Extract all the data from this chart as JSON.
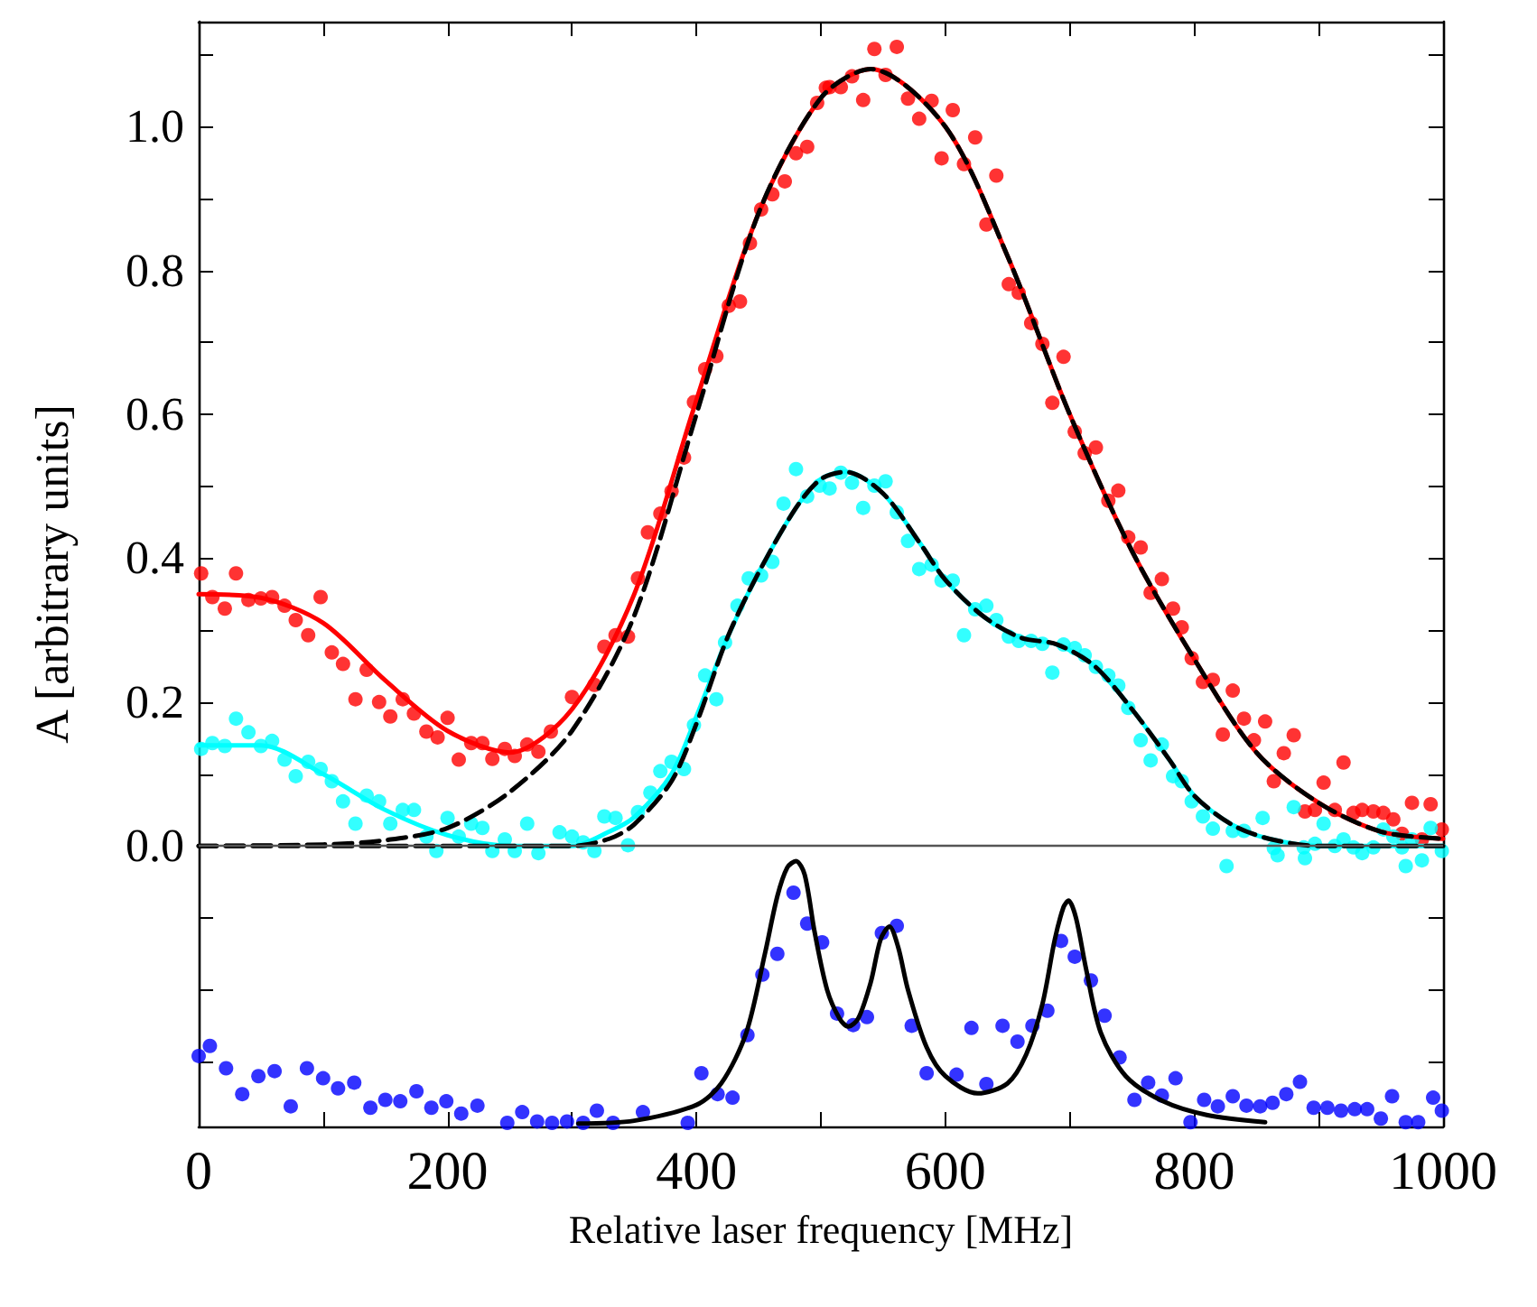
{
  "chart_data": {
    "type": "scatter",
    "xlabel": "Relative laser frequency [MHz]",
    "ylabel": "A [arbitrary units]",
    "xlim": [
      0,
      1000
    ],
    "ylim": [
      -0.39,
      1.146
    ],
    "xticks": [
      0,
      {
        "value": 100,
        "label": null
      },
      200,
      {
        "value": 300,
        "label": null
      },
      400,
      {
        "value": 500,
        "label": null
      },
      600,
      {
        "value": 700,
        "label": null
      },
      800,
      {
        "value": 900,
        "label": null
      },
      1000
    ],
    "yticks": [
      {
        "value": -0.3,
        "label": null
      },
      {
        "value": -0.2,
        "label": null
      },
      {
        "value": -0.1,
        "label": null
      },
      {
        "value": 0,
        "label": "0.0"
      },
      {
        "value": 0.1,
        "label": null
      },
      {
        "value": 0.2,
        "label": "0.2"
      },
      {
        "value": 0.3,
        "label": null
      },
      {
        "value": 0.4,
        "label": "0.4"
      },
      {
        "value": 0.5,
        "label": null
      },
      {
        "value": 0.6,
        "label": "0.6"
      },
      {
        "value": 0.7,
        "label": null
      },
      {
        "value": 0.8,
        "label": "0.8"
      },
      {
        "value": 0.9,
        "label": null
      },
      {
        "value": 1.0,
        "label": "1.0"
      },
      {
        "value": 1.1,
        "label": null
      }
    ],
    "grid": false,
    "ref_lines": [
      {
        "axis": "y",
        "value": 0,
        "color": "#555555"
      }
    ],
    "series": [
      {
        "marker": "circle",
        "color": "#ff0000",
        "x": [
          2,
          11,
          21,
          30,
          40,
          50,
          59,
          69,
          78,
          88,
          98,
          107,
          116,
          126,
          135,
          145,
          154,
          164,
          173,
          183,
          192,
          200,
          209,
          219,
          228,
          236,
          246,
          254,
          264,
          273,
          283,
          300,
          318,
          326,
          335,
          345,
          353,
          361,
          371,
          380,
          390,
          398,
          407,
          416,
          426,
          435,
          443,
          452,
          461,
          471,
          480,
          489,
          497,
          504,
          507,
          516,
          525,
          534,
          543,
          552,
          561,
          570,
          579,
          589,
          597,
          606,
          615,
          624,
          633,
          641,
          651,
          659,
          669,
          678,
          686,
          695,
          704,
          712,
          721,
          731,
          739,
          747,
          757,
          765,
          774,
          783,
          790,
          798,
          807,
          815,
          823,
          831,
          840,
          848,
          857,
          864,
          872,
          880,
          889,
          897,
          904,
          913,
          920,
          928,
          935,
          944,
          952,
          960,
          967,
          975,
          983,
          990,
          999
        ],
        "values": [
          0.379,
          0.346,
          0.33,
          0.379,
          0.342,
          0.344,
          0.346,
          0.334,
          0.314,
          0.293,
          0.346,
          0.269,
          0.253,
          0.204,
          0.245,
          0.2,
          0.18,
          0.204,
          0.184,
          0.159,
          0.151,
          0.178,
          0.12,
          0.143,
          0.143,
          0.121,
          0.135,
          0.125,
          0.141,
          0.131,
          0.159,
          0.207,
          0.224,
          0.277,
          0.293,
          0.291,
          0.372,
          0.436,
          0.462,
          0.493,
          0.54,
          0.617,
          0.663,
          0.681,
          0.751,
          0.757,
          0.838,
          0.885,
          0.906,
          0.924,
          0.963,
          0.972,
          1.033,
          1.054,
          1.055,
          1.055,
          1.07,
          1.037,
          1.108,
          1.072,
          1.111,
          1.039,
          1.011,
          1.036,
          0.956,
          1.023,
          0.948,
          0.985,
          0.864,
          0.932,
          0.781,
          0.769,
          0.727,
          0.698,
          0.616,
          0.68,
          0.576,
          0.546,
          0.554,
          0.48,
          0.494,
          0.429,
          0.415,
          0.352,
          0.371,
          0.33,
          0.304,
          0.261,
          0.228,
          0.231,
          0.155,
          0.216,
          0.177,
          0.147,
          0.173,
          0.09,
          0.129,
          0.154,
          0.048,
          0.05,
          0.088,
          0.05,
          0.116,
          0.046,
          0.05,
          0.048,
          0.046,
          0.037,
          0.017,
          0.06,
          0.009,
          0.058,
          0.023
        ]
      },
      {
        "marker": "circle",
        "color": "#00ffff",
        "x": [
          2,
          11,
          21,
          30,
          40,
          50,
          59,
          69,
          78,
          88,
          98,
          107,
          116,
          126,
          135,
          145,
          154,
          164,
          173,
          183,
          191,
          200,
          209,
          219,
          228,
          236,
          246,
          254,
          264,
          273,
          290,
          300,
          309,
          318,
          326,
          335,
          345,
          353,
          363,
          371,
          380,
          390,
          398,
          407,
          416,
          423,
          433,
          442,
          452,
          461,
          470,
          480,
          489,
          499,
          507,
          516,
          525,
          534,
          543,
          552,
          561,
          570,
          579,
          589,
          597,
          606,
          615,
          624,
          633,
          641,
          651,
          659,
          669,
          678,
          686,
          695,
          704,
          712,
          721,
          731,
          739,
          747,
          757,
          765,
          774,
          783,
          790,
          798,
          807,
          815,
          826,
          831,
          840,
          855,
          864,
          867,
          880,
          888,
          889,
          897,
          904,
          913,
          920,
          928,
          935,
          944,
          952,
          960,
          967,
          970,
          975,
          983,
          990,
          999
        ],
        "values": [
          0.135,
          0.143,
          0.139,
          0.177,
          0.158,
          0.139,
          0.146,
          0.12,
          0.097,
          0.117,
          0.107,
          0.09,
          0.062,
          0.031,
          0.07,
          0.062,
          0.031,
          0.05,
          0.05,
          0.013,
          -0.007,
          0.039,
          0.013,
          0.031,
          0.025,
          -0.007,
          0.009,
          -0.007,
          0.031,
          -0.01,
          0.019,
          0.013,
          0.005,
          -0.007,
          0.041,
          0.039,
          0.001,
          0.047,
          0.074,
          0.104,
          0.117,
          0.107,
          0.168,
          0.237,
          0.204,
          0.283,
          0.334,
          0.372,
          0.376,
          0.395,
          0.476,
          0.524,
          0.486,
          0.501,
          0.497,
          0.519,
          0.505,
          0.47,
          0.501,
          0.507,
          0.464,
          0.424,
          0.385,
          0.391,
          0.369,
          0.369,
          0.293,
          0.329,
          0.334,
          0.314,
          0.291,
          0.285,
          0.285,
          0.281,
          0.241,
          0.28,
          0.275,
          0.265,
          0.249,
          0.237,
          0.223,
          0.192,
          0.147,
          0.119,
          0.141,
          0.097,
          0.09,
          0.062,
          0.041,
          0.024,
          -0.028,
          0.021,
          0.021,
          0.039,
          -0.003,
          -0.013,
          0.054,
          -0.002,
          -0.017,
          0.003,
          0.031,
          0.0,
          0.009,
          -0.002,
          -0.01,
          -0.002,
          0.023,
          0.013,
          -0.002,
          -0.028,
          0.009,
          -0.02,
          0.025,
          -0.007
        ]
      },
      {
        "type": "line",
        "color": "#ff0000",
        "line_style": "solid",
        "x": [
          0,
          50,
          100,
          150,
          200,
          250,
          300,
          350,
          400,
          450,
          500,
          540,
          600,
          650,
          700,
          750,
          800,
          850,
          900,
          950,
          1000
        ],
        "values": [
          0.35,
          0.345,
          0.31,
          0.23,
          0.16,
          0.13,
          0.19,
          0.35,
          0.62,
          0.88,
          1.04,
          1.08,
          1.0,
          0.82,
          0.6,
          0.41,
          0.26,
          0.13,
          0.06,
          0.02,
          0.01
        ]
      },
      {
        "type": "line",
        "color": "#00ffff",
        "line_style": "solid",
        "x": [
          0,
          50,
          100,
          150,
          200,
          250,
          300,
          330,
          350,
          380,
          400,
          425,
          450,
          480,
          500,
          520,
          550,
          580,
          600,
          630,
          660,
          690,
          720,
          750,
          780,
          800,
          830,
          860,
          900,
          1000
        ],
        "values": [
          0.14,
          0.14,
          0.1,
          0.05,
          0.015,
          0.0,
          0.0,
          0.02,
          0.04,
          0.1,
          0.18,
          0.29,
          0.38,
          0.47,
          0.51,
          0.52,
          0.49,
          0.42,
          0.37,
          0.32,
          0.29,
          0.28,
          0.25,
          0.19,
          0.12,
          0.07,
          0.03,
          0.01,
          0.0,
          0.0
        ]
      },
      {
        "type": "line",
        "color": "#000000",
        "line_style": "dashed",
        "x": [
          0,
          100,
          150,
          200,
          250,
          300,
          350,
          400,
          450,
          500,
          540,
          600,
          650,
          700,
          750,
          800,
          850,
          900,
          950,
          1000
        ],
        "values": [
          0.0,
          0.002,
          0.008,
          0.025,
          0.075,
          0.16,
          0.32,
          0.6,
          0.88,
          1.04,
          1.08,
          1.0,
          0.82,
          0.6,
          0.41,
          0.26,
          0.13,
          0.06,
          0.02,
          0.01
        ]
      },
      {
        "type": "line",
        "color": "#000000",
        "line_style": "dashed",
        "x": [
          0,
          100,
          200,
          300,
          330,
          350,
          380,
          400,
          425,
          450,
          480,
          500,
          520,
          550,
          580,
          600,
          630,
          660,
          690,
          720,
          750,
          780,
          800,
          830,
          860,
          900,
          1000
        ],
        "values": [
          0.0,
          0.0,
          0.0,
          0.0,
          0.01,
          0.03,
          0.09,
          0.17,
          0.29,
          0.38,
          0.47,
          0.51,
          0.52,
          0.49,
          0.42,
          0.37,
          0.32,
          0.29,
          0.28,
          0.25,
          0.19,
          0.12,
          0.07,
          0.03,
          0.01,
          0.0,
          0.0
        ]
      },
      {
        "marker": "circle",
        "color": "#0000ff",
        "x": [
          0,
          9,
          22,
          35,
          48,
          61,
          74,
          87,
          100,
          112,
          125,
          138,
          150,
          162,
          175,
          187,
          199,
          211,
          224,
          248,
          260,
          272,
          284,
          296,
          309,
          320,
          333,
          357,
          393,
          404,
          417,
          429,
          441,
          453,
          465,
          478,
          489,
          501,
          513,
          526,
          537,
          549,
          561,
          573,
          585,
          609,
          621,
          633,
          646,
          658,
          670,
          682,
          693,
          704,
          717,
          728,
          740,
          752,
          763,
          774,
          785,
          797,
          808,
          819,
          831,
          842,
          853,
          863,
          874,
          885,
          896,
          907,
          918,
          929,
          939,
          950,
          959,
          970,
          980,
          992,
          999
        ],
        "values": [
          -0.292,
          -0.278,
          -0.309,
          -0.345,
          -0.32,
          -0.313,
          -0.362,
          -0.309,
          -0.323,
          -0.337,
          -0.329,
          -0.364,
          -0.353,
          -0.355,
          -0.341,
          -0.364,
          -0.355,
          -0.372,
          -0.361,
          -0.385,
          -0.37,
          -0.383,
          -0.385,
          -0.383,
          -0.385,
          -0.368,
          -0.385,
          -0.37,
          -0.385,
          -0.316,
          -0.345,
          -0.35,
          -0.263,
          -0.179,
          -0.15,
          -0.065,
          -0.108,
          -0.134,
          -0.233,
          -0.249,
          -0.238,
          -0.121,
          -0.111,
          -0.25,
          -0.316,
          -0.318,
          -0.253,
          -0.331,
          -0.25,
          -0.272,
          -0.25,
          -0.229,
          -0.132,
          -0.154,
          -0.187,
          -0.236,
          -0.294,
          -0.353,
          -0.329,
          -0.347,
          -0.323,
          -0.384,
          -0.353,
          -0.362,
          -0.348,
          -0.361,
          -0.362,
          -0.357,
          -0.345,
          -0.328,
          -0.364,
          -0.364,
          -0.368,
          -0.366,
          -0.366,
          -0.379,
          -0.348,
          -0.384,
          -0.384,
          -0.35,
          -0.368
        ]
      },
      {
        "type": "line",
        "color": "#000000",
        "line_style": "solid",
        "x": [
          305,
          350,
          400,
          420,
          440,
          455,
          465,
          473,
          480,
          487,
          495,
          505,
          515,
          522,
          530,
          540,
          548,
          555,
          562,
          570,
          585,
          600,
          626,
          650,
          665,
          678,
          688,
          695,
          699,
          705,
          713,
          725,
          745,
          775,
          810,
          857
        ],
        "values": [
          -0.386,
          -0.382,
          -0.36,
          -0.33,
          -0.26,
          -0.15,
          -0.07,
          -0.03,
          -0.021,
          -0.04,
          -0.12,
          -0.2,
          -0.24,
          -0.251,
          -0.24,
          -0.19,
          -0.13,
          -0.112,
          -0.14,
          -0.2,
          -0.28,
          -0.32,
          -0.344,
          -0.33,
          -0.29,
          -0.22,
          -0.13,
          -0.085,
          -0.076,
          -0.1,
          -0.17,
          -0.26,
          -0.32,
          -0.355,
          -0.374,
          -0.384
        ]
      }
    ]
  }
}
